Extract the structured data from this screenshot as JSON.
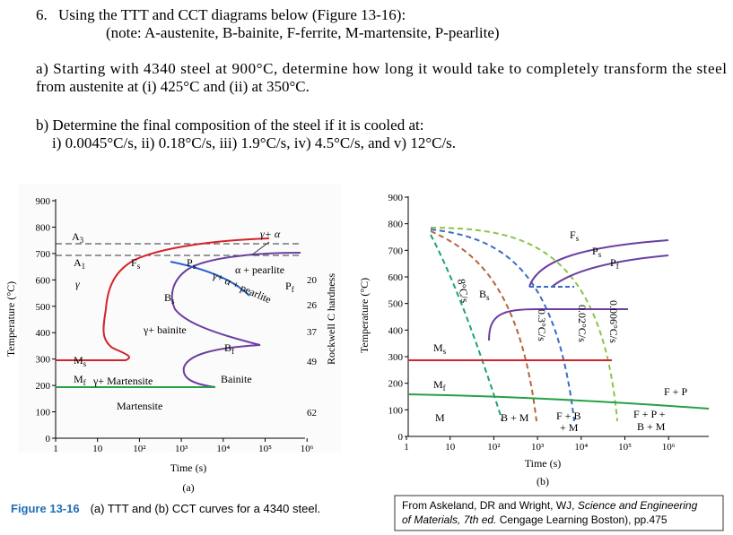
{
  "question": {
    "number": "6.",
    "text": "Using the TTT and CCT diagrams below (Figure 13-16):",
    "note": "(note: A-austenite, B-bainite, F-ferrite, M-martensite, P-pearlite)"
  },
  "part_a": {
    "lines": [
      "a) Starting with 4340 steel at 900°C, determine how long it would take to completely transform the steel",
      "from austenite at (i) 425°C and (ii) at 350°C."
    ]
  },
  "part_b": {
    "lines": [
      "b) Determine the final composition of the steel if it is cooled at:",
      "i) 0.0045°C/s, ii) 0.18°C/s, iii) 1.9°C/s, iv) 4.5°C/s, and v) 12°C/s."
    ]
  },
  "figure_a": {
    "y_axis_label": "Temperature (°C)",
    "y_ticks": [
      "900",
      "800",
      "700",
      "600",
      "500",
      "400",
      "300",
      "200",
      "100",
      "0"
    ],
    "x_ticks": [
      "1",
      "10",
      "10²",
      "10³",
      "10⁴",
      "10⁵",
      "10⁶"
    ],
    "x_axis_label": "Time (s)",
    "panel_label": "(a)",
    "hardness_label": "Rockwell C hardness",
    "hardness_ticks": [
      "20",
      "26",
      "37",
      "49",
      "62"
    ],
    "labels": {
      "a3": {
        "text": "A",
        "sub": "3"
      },
      "a1": {
        "text": "A",
        "sub": "1"
      },
      "gamma": "γ",
      "ms": {
        "text": "M",
        "sub": "s"
      },
      "mf": {
        "text": "M",
        "sub": "f"
      },
      "fs": {
        "text": "F",
        "sub": "s"
      },
      "ps": {
        "text": "P",
        "sub": "s"
      },
      "bs": {
        "text": "B",
        "sub": "s"
      },
      "gamma_bainite": "γ+ bainite",
      "gamma_alpha": "γ+ α",
      "alpha_pearlite": "α + pearlite",
      "pf": {
        "text": "P",
        "sub": "f"
      },
      "gamma_alpha_pearlite": "γ+ α + pearlite",
      "bf": {
        "text": "B",
        "sub": "f"
      },
      "bainite": "Bainite",
      "gamma_martensite": "γ+ Martensite",
      "martensite": "Martensite"
    }
  },
  "figure_b": {
    "y_axis_label": "Temperature (°C)",
    "y_ticks": [
      "900",
      "800",
      "700",
      "600",
      "500",
      "400",
      "300",
      "200",
      "100",
      "0"
    ],
    "x_ticks": [
      "1",
      "10",
      "10²",
      "10³",
      "10⁴",
      "10⁵",
      "10⁶"
    ],
    "x_axis_label": "Time (s)",
    "panel_label": "(b)",
    "labels": {
      "fs": {
        "text": "F",
        "sub": "s"
      },
      "ps": {
        "text": "P",
        "sub": "s"
      },
      "pf": {
        "text": "P",
        "sub": "f"
      },
      "bs": {
        "text": "B",
        "sub": "s"
      },
      "ms": {
        "text": "M",
        "sub": "s"
      },
      "mf": {
        "text": "M",
        "sub": "f"
      },
      "m": "M",
      "b_m": "B + M",
      "f_b": "F + B",
      "plus_m": "+ M",
      "f_p_plus": "F + P +",
      "b_m2": "B + M",
      "f_p": "F + P",
      "rate1": "8°C/s",
      "rate2": "0.3°C/s",
      "rate3": "0.02°C/s",
      "rate4": "0.006°C/s"
    }
  },
  "caption": {
    "number": "Figure 13-16",
    "text": "(a) TTT and (b) CCT curves for a 4340 steel."
  },
  "credit": {
    "line1": {
      "a": "From Askeland, DR and Wright, WJ, ",
      "b": "Science and Engineering"
    },
    "line2": {
      "a": "of Materials, 7th ed.",
      "b": " Cengage Learning Boston), pp.475"
    }
  }
}
